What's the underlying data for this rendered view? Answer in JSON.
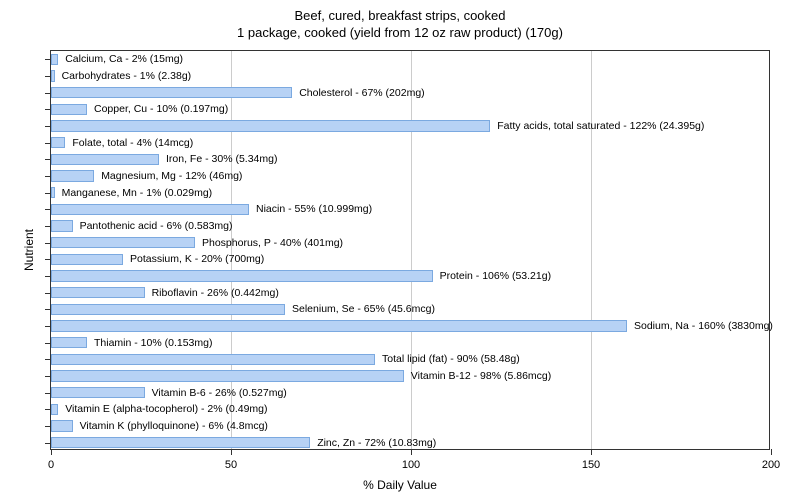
{
  "chart": {
    "type": "bar_horizontal",
    "title_line1": "Beef, cured, breakfast strips, cooked",
    "title_line2": "1 package, cooked (yield from 12 oz raw product) (170g)",
    "title_fontsize": 13,
    "x_label": "% Daily Value",
    "y_label": "Nutrient",
    "label_fontsize": 12,
    "background_color": "#ffffff",
    "plot_border_color": "#333333",
    "grid_color": "#cccccc",
    "bar_fill": "#b7d2f5",
    "bar_stroke": "#7ba9e0",
    "bar_label_fontsize": 10.5,
    "xlim": [
      0,
      200
    ],
    "x_ticks": [
      0,
      50,
      100,
      150,
      200
    ],
    "bar_height_ratio": 0.7,
    "nutrients": [
      {
        "label": "Calcium, Ca - 2% (15mg)",
        "pct": 2
      },
      {
        "label": "Carbohydrates - 1% (2.38g)",
        "pct": 1
      },
      {
        "label": "Cholesterol - 67% (202mg)",
        "pct": 67
      },
      {
        "label": "Copper, Cu - 10% (0.197mg)",
        "pct": 10
      },
      {
        "label": "Fatty acids, total saturated - 122% (24.395g)",
        "pct": 122
      },
      {
        "label": "Folate, total - 4% (14mcg)",
        "pct": 4
      },
      {
        "label": "Iron, Fe - 30% (5.34mg)",
        "pct": 30
      },
      {
        "label": "Magnesium, Mg - 12% (46mg)",
        "pct": 12
      },
      {
        "label": "Manganese, Mn - 1% (0.029mg)",
        "pct": 1
      },
      {
        "label": "Niacin - 55% (10.999mg)",
        "pct": 55
      },
      {
        "label": "Pantothenic acid - 6% (0.583mg)",
        "pct": 6
      },
      {
        "label": "Phosphorus, P - 40% (401mg)",
        "pct": 40
      },
      {
        "label": "Potassium, K - 20% (700mg)",
        "pct": 20
      },
      {
        "label": "Protein - 106% (53.21g)",
        "pct": 106
      },
      {
        "label": "Riboflavin - 26% (0.442mg)",
        "pct": 26
      },
      {
        "label": "Selenium, Se - 65% (45.6mcg)",
        "pct": 65
      },
      {
        "label": "Sodium, Na - 160% (3830mg)",
        "pct": 160
      },
      {
        "label": "Thiamin - 10% (0.153mg)",
        "pct": 10
      },
      {
        "label": "Total lipid (fat) - 90% (58.48g)",
        "pct": 90
      },
      {
        "label": "Vitamin B-12 - 98% (5.86mcg)",
        "pct": 98
      },
      {
        "label": "Vitamin B-6 - 26% (0.527mg)",
        "pct": 26
      },
      {
        "label": "Vitamin E (alpha-tocopherol) - 2% (0.49mg)",
        "pct": 2
      },
      {
        "label": "Vitamin K (phylloquinone) - 6% (4.8mcg)",
        "pct": 6
      },
      {
        "label": "Zinc, Zn - 72% (10.83mg)",
        "pct": 72
      }
    ]
  }
}
